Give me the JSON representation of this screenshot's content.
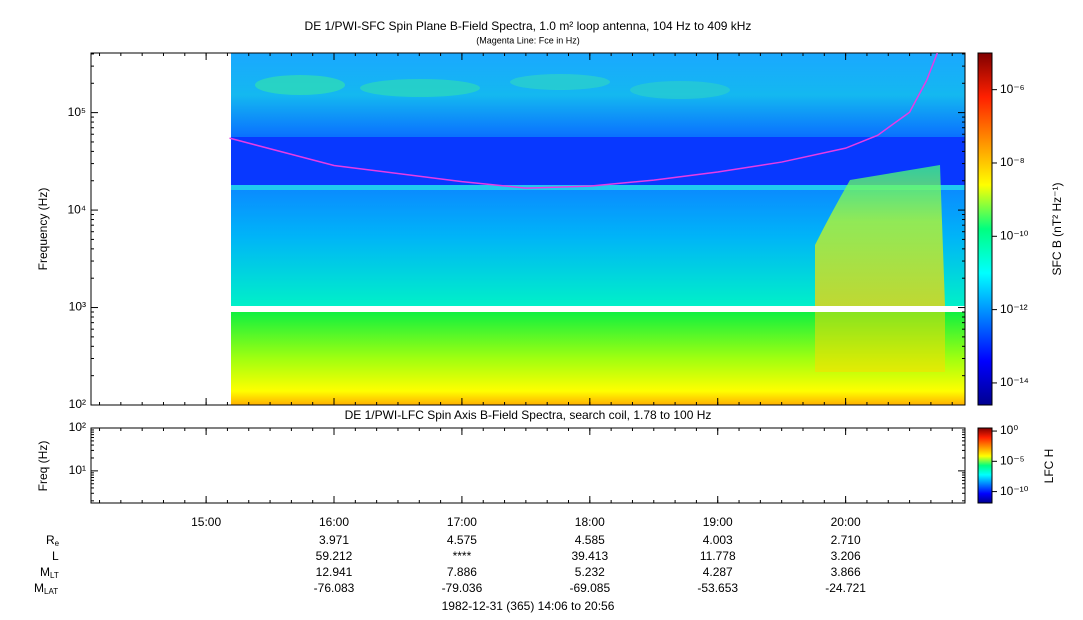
{
  "chart_data": [
    {
      "type": "spectrogram",
      "title": "DE 1/PWI-SFC  Spin Plane B-Field Spectra, 1.0 m² loop antenna, 104 Hz to 409 kHz",
      "subtitle": "(Magenta Line: Fce in Hz)",
      "y_label": "Frequency (Hz)",
      "log_y": true,
      "xlim": [
        846,
        1256
      ],
      "ylim": [
        100,
        409000
      ],
      "yticks": [
        {
          "value": 100,
          "label": "10²"
        },
        {
          "value": 1000,
          "label": "10³"
        },
        {
          "value": 10000,
          "label": "10⁴"
        },
        {
          "value": 100000,
          "label": "10⁵"
        }
      ],
      "colorbar_label": "SFC B (nT² Hz⁻¹)",
      "clim": [
        2.5e-15,
        1e-05
      ],
      "cticks": [
        {
          "value": 1e-06,
          "label": "10⁻⁶"
        },
        {
          "value": 1e-08,
          "label": "10⁻⁸"
        },
        {
          "value": 1e-10,
          "label": "10⁻¹⁰"
        },
        {
          "value": 1e-12,
          "label": "10⁻¹²"
        },
        {
          "value": 1e-14,
          "label": "10⁻¹⁴"
        }
      ],
      "series": [
        {
          "color": "#e63ce6",
          "x": [
            911,
            960,
            1020,
            1050,
            1080,
            1110,
            1140,
            1170,
            1200,
            1215,
            1230,
            1238,
            1243
          ],
          "values": [
            54700,
            28700,
            19600,
            16800,
            17600,
            20300,
            24600,
            31100,
            43200,
            58500,
            101000,
            214000,
            409000
          ]
        }
      ]
    },
    {
      "type": "spectrogram",
      "title": "DE 1/PWI-LFC  Spin Axis B-Field Spectra, search coil, 1.78 to 100 Hz",
      "y_label": "Freq (Hz)",
      "log_y": true,
      "xlim": [
        846,
        1256
      ],
      "xticks": [
        {
          "value": 900,
          "label": "15:00"
        },
        {
          "value": 960,
          "label": "16:00"
        },
        {
          "value": 1020,
          "label": "17:00"
        },
        {
          "value": 1080,
          "label": "18:00"
        },
        {
          "value": 1140,
          "label": "19:00"
        },
        {
          "value": 1200,
          "label": "20:00"
        }
      ],
      "ylim": [
        1.78,
        100
      ],
      "yticks": [
        {
          "value": 100,
          "label": "10²"
        },
        {
          "value": 10,
          "label": "10¹"
        }
      ],
      "colorbar_label": "LFC H",
      "clim": [
        1.3e-12,
        3.2
      ],
      "cticks": [
        {
          "value": 1,
          "label": "10⁰"
        },
        {
          "value": 1e-05,
          "label": "10⁻⁵"
        },
        {
          "value": 1e-10,
          "label": "10⁻¹⁰"
        }
      ]
    }
  ],
  "ephemeris": {
    "rows": [
      {
        "label": "R",
        "sub": "e",
        "values": [
          "3.971",
          "4.575",
          "4.585",
          "4.003",
          "2.710"
        ]
      },
      {
        "label": "L",
        "values": [
          "59.212",
          "****",
          "39.413",
          "11.778",
          "3.206"
        ]
      },
      {
        "label": "M",
        "sub": "LT",
        "values": [
          "12.941",
          "7.886",
          "5.232",
          "4.287",
          "3.866"
        ]
      },
      {
        "label": "M",
        "sub": "LAT",
        "values": [
          "-76.083",
          "-79.036",
          "-69.085",
          "-53.653",
          "-24.721"
        ]
      }
    ],
    "footer": "1982-12-31 (365) 14:06 to 20:56"
  }
}
